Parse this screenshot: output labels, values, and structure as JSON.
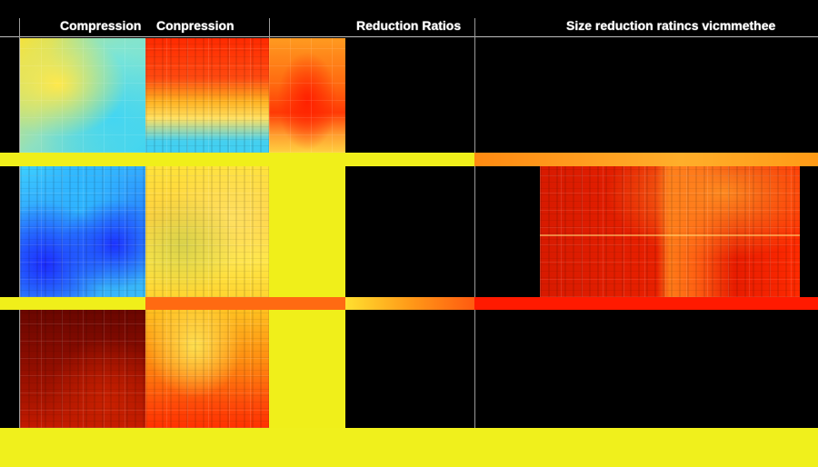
{
  "header": {
    "label1": "Compression",
    "label2": "Conpression",
    "label3": "Reduction Ratios",
    "label4": "Size reduction ratincs vicmmethee"
  },
  "colors": {
    "background": "#000000",
    "yellow": "#f2f21a",
    "orange": "#ff8a12",
    "red": "#ff1a00",
    "cyan": "#3cd8f0",
    "blue": "#1f3cff",
    "dark_red": "#7a0800"
  }
}
